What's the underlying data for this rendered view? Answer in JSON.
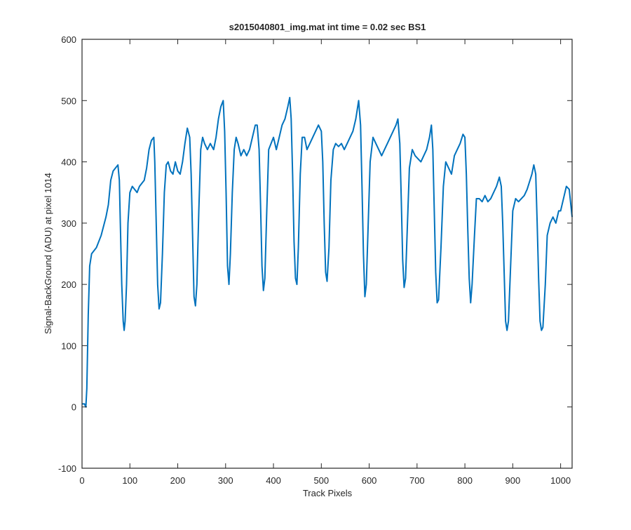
{
  "chart_data": {
    "type": "line",
    "title": "s2015040801_img.mat int time = 0.02 sec   BS1",
    "x_label": "Track Pixels",
    "y_label": "Signal-BackGround (ADU) at pixel 1014",
    "xlim": [
      0,
      1024
    ],
    "ylim": [
      -100,
      600
    ],
    "xticks": [
      0,
      100,
      200,
      300,
      400,
      500,
      600,
      700,
      800,
      900,
      1000
    ],
    "yticks": [
      -100,
      0,
      100,
      200,
      300,
      400,
      500,
      600
    ],
    "series": [
      {
        "name": "BS1",
        "color": "#0072bd",
        "x": [
          0,
          5,
          8,
          10,
          13,
          16,
          20,
          30,
          40,
          50,
          55,
          60,
          65,
          70,
          75,
          78,
          80,
          83,
          86,
          88,
          90,
          93,
          96,
          100,
          105,
          110,
          115,
          120,
          125,
          130,
          135,
          140,
          145,
          150,
          152,
          155,
          158,
          161,
          164,
          168,
          172,
          176,
          180,
          185,
          190,
          195,
          200,
          205,
          210,
          215,
          220,
          225,
          228,
          231,
          234,
          237,
          240,
          244,
          248,
          252,
          256,
          262,
          268,
          275,
          280,
          285,
          290,
          295,
          298,
          301,
          304,
          307,
          310,
          314,
          318,
          322,
          326,
          332,
          338,
          344,
          350,
          356,
          362,
          366,
          370,
          373,
          376,
          379,
          382,
          386,
          390,
          395,
          400,
          406,
          412,
          418,
          424,
          430,
          434,
          437,
          440,
          443,
          446,
          449,
          452,
          456,
          460,
          465,
          470,
          476,
          482,
          488,
          494,
          500,
          503,
          506,
          509,
          512,
          516,
          520,
          525,
          530,
          536,
          542,
          548,
          554,
          560,
          566,
          572,
          578,
          582,
          585,
          588,
          591,
          594,
          598,
          602,
          608,
          614,
          620,
          626,
          632,
          638,
          644,
          650,
          656,
          660,
          664,
          667,
          670,
          673,
          676,
          680,
          684,
          690,
          696,
          702,
          708,
          714,
          720,
          726,
          730,
          733,
          736,
          739,
          742,
          745,
          750,
          755,
          760,
          766,
          772,
          778,
          784,
          790,
          796,
          800,
          803,
          806,
          809,
          812,
          815,
          820,
          824,
          830,
          836,
          842,
          848,
          854,
          860,
          866,
          872,
          876,
          879,
          882,
          885,
          888,
          891,
          896,
          900,
          906,
          912,
          918,
          924,
          930,
          936,
          940,
          944,
          948,
          951,
          954,
          957,
          960,
          963,
          968,
          972,
          978,
          984,
          990,
          996,
          1000,
          1006,
          1012,
          1018,
          1024
        ],
        "values": [
          5,
          5,
          0,
          30,
          150,
          230,
          250,
          260,
          280,
          310,
          330,
          370,
          385,
          390,
          395,
          370,
          300,
          200,
          140,
          125,
          140,
          200,
          300,
          350,
          360,
          355,
          350,
          360,
          365,
          370,
          390,
          420,
          435,
          440,
          400,
          300,
          200,
          160,
          170,
          250,
          350,
          395,
          400,
          385,
          380,
          400,
          385,
          380,
          400,
          430,
          455,
          440,
          380,
          280,
          180,
          165,
          200,
          320,
          420,
          440,
          430,
          420,
          430,
          420,
          440,
          470,
          490,
          500,
          450,
          350,
          230,
          200,
          250,
          350,
          420,
          440,
          430,
          410,
          420,
          410,
          420,
          440,
          460,
          460,
          420,
          330,
          230,
          190,
          210,
          320,
          420,
          430,
          440,
          420,
          440,
          460,
          470,
          490,
          505,
          470,
          380,
          270,
          210,
          200,
          260,
          380,
          440,
          440,
          420,
          430,
          440,
          450,
          460,
          450,
          400,
          300,
          220,
          205,
          260,
          370,
          420,
          430,
          425,
          430,
          420,
          430,
          440,
          450,
          470,
          500,
          460,
          360,
          250,
          180,
          200,
          300,
          400,
          440,
          430,
          420,
          410,
          420,
          430,
          440,
          450,
          460,
          470,
          430,
          340,
          240,
          195,
          210,
          300,
          390,
          420,
          410,
          405,
          400,
          410,
          420,
          440,
          460,
          420,
          320,
          220,
          170,
          175,
          260,
          360,
          400,
          390,
          380,
          410,
          420,
          430,
          445,
          440,
          380,
          290,
          210,
          170,
          200,
          280,
          340,
          340,
          335,
          345,
          335,
          340,
          350,
          360,
          375,
          360,
          300,
          220,
          140,
          125,
          140,
          240,
          320,
          340,
          335,
          340,
          345,
          355,
          370,
          380,
          395,
          380,
          300,
          210,
          140,
          125,
          130,
          200,
          280,
          300,
          310,
          300,
          320,
          320,
          340,
          360,
          355,
          310
        ]
      }
    ]
  }
}
